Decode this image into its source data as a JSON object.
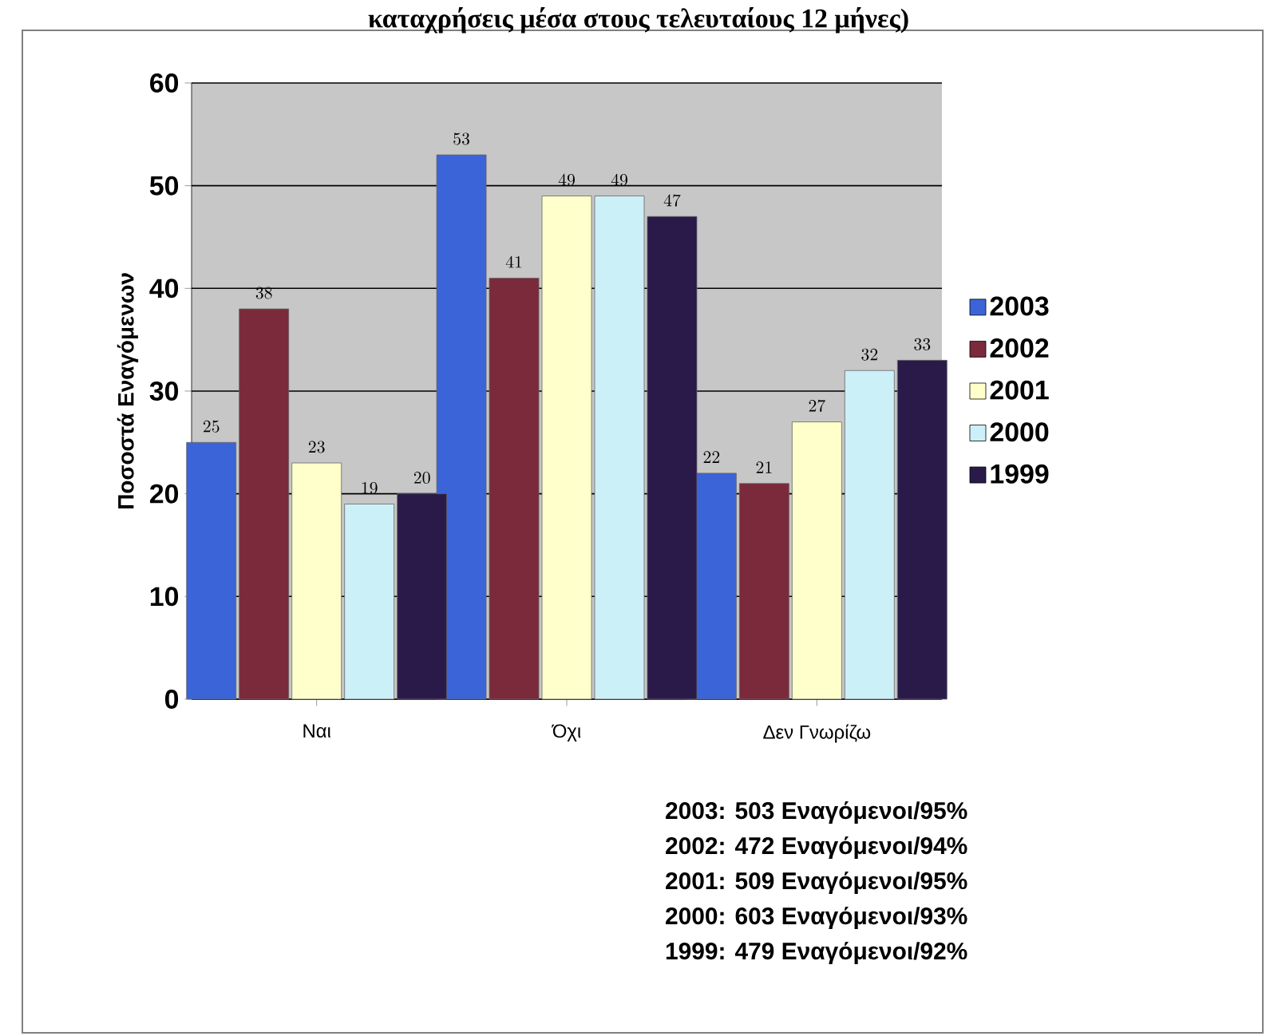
{
  "chart_data": {
    "type": "bar",
    "title": "καταχρήσεις μέσα στους τελευταίους 12 μήνες)",
    "ylabel": "Ποσοστά Εναγόμενων",
    "categories": [
      "Ναι",
      "Όχι",
      "Δεν Γνωρίζω"
    ],
    "series": [
      {
        "name": "2003",
        "color": "#3b64d8",
        "values": [
          25,
          53,
          22
        ]
      },
      {
        "name": "2002",
        "color": "#7a2a3a",
        "values": [
          38,
          41,
          21
        ]
      },
      {
        "name": "2001",
        "color": "#ffffcc",
        "values": [
          23,
          49,
          27
        ]
      },
      {
        "name": "2000",
        "color": "#ccf0f8",
        "values": [
          19,
          49,
          32
        ]
      },
      {
        "name": "1999",
        "color": "#2a1a4a",
        "values": [
          20,
          47,
          33
        ]
      }
    ],
    "ylim": [
      0,
      60
    ],
    "yticks": [
      0,
      10,
      20,
      30,
      40,
      50,
      60
    ],
    "grid": "y",
    "legend": "right",
    "data_labels": true,
    "annotations": [
      "2003: 503 Εναγόμενοι/95%",
      "2002: 472 Εναγόμενοι/94%",
      "2001: 509 Εναγόμενοι/95%",
      "2000: 603 Εναγόμενοι/93%",
      "1999: 479 Εναγόμενοι/92%"
    ]
  }
}
